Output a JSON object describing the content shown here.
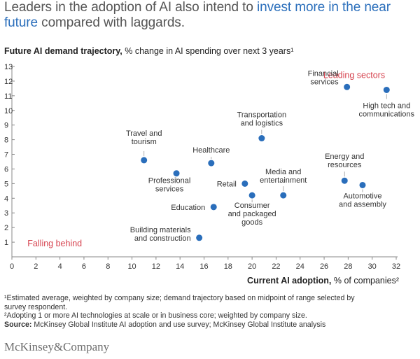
{
  "title": {
    "part1": "Leaders in the adoption of AI also intend to ",
    "highlight": "invest more in the near future",
    "part2": " compared with laggards."
  },
  "colors": {
    "accent": "#2a6ebb",
    "dot": "#2a6ebb",
    "group_label": "#d6434f",
    "axis": "#888888"
  },
  "chart_data": {
    "type": "scatter",
    "ylabel_bold": "Future AI demand trajectory,",
    "ylabel_rest": " % change in AI spending over next 3 years¹",
    "xlabel_bold": "Current AI adoption,",
    "xlabel_rest": " % of companies²",
    "xlim": [
      0,
      32
    ],
    "ylim": [
      0,
      13
    ],
    "xticks": [
      0,
      2,
      4,
      6,
      8,
      10,
      12,
      14,
      16,
      18,
      20,
      22,
      24,
      26,
      28,
      30,
      32
    ],
    "yticks": [
      1,
      2,
      3,
      4,
      5,
      6,
      7,
      8,
      9,
      10,
      11,
      12,
      13
    ],
    "grid": false,
    "annotations": [
      {
        "text": "Leading sectors",
        "x": 28.5,
        "y": 12.4
      },
      {
        "text": "Falling behind",
        "x": 1.3,
        "y": 0.9
      }
    ],
    "points": [
      {
        "label": "Financial services",
        "x": 27.9,
        "y": 11.6
      },
      {
        "label": "High tech and communications",
        "x": 31.2,
        "y": 11.4
      },
      {
        "label": "Transportation and logistics",
        "x": 20.8,
        "y": 8.1
      },
      {
        "label": "Travel and tourism",
        "x": 11.0,
        "y": 6.6
      },
      {
        "label": "Healthcare",
        "x": 16.6,
        "y": 6.4
      },
      {
        "label": "Professional services",
        "x": 13.7,
        "y": 5.7
      },
      {
        "label": "Retail",
        "x": 19.4,
        "y": 5.0
      },
      {
        "label": "Media and entertainment",
        "x": 22.6,
        "y": 4.2
      },
      {
        "label": "Consumer and packaged goods",
        "x": 20.0,
        "y": 4.2
      },
      {
        "label": "Energy and resources",
        "x": 27.7,
        "y": 5.2
      },
      {
        "label": "Automotive and assembly",
        "x": 29.2,
        "y": 4.9
      },
      {
        "label": "Education",
        "x": 16.8,
        "y": 3.4
      },
      {
        "label": "Building materials and construction",
        "x": 15.6,
        "y": 1.3
      }
    ]
  },
  "footnotes": {
    "note1_line1": "¹Estimated average, weighted by company size; demand trajectory based on midpoint of range selected by",
    "note1_line2": " survey respondent.",
    "note2": "²Adopting 1 or more AI technologies at scale or in business core; weighted by company size.",
    "source_bold": "Source:",
    "source_rest": " McKinsey Global Institute AI adoption and use survey; McKinsey Global Institute analysis"
  },
  "brand": "McKinsey&Company"
}
